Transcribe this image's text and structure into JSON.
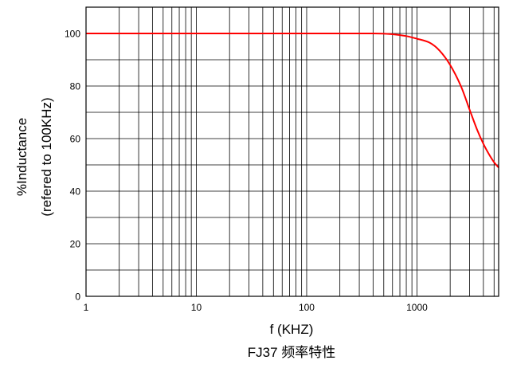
{
  "chart_data": {
    "type": "line",
    "title": "FJ37 频率特性",
    "xlabel": "f (KHZ)",
    "ylabel_lines": [
      "%Inductance",
      "(refered to 100KHz)"
    ],
    "x_scale": "log",
    "xlim": [
      1,
      5500
    ],
    "ylim": [
      0,
      110
    ],
    "x_ticks": [
      1,
      10,
      100,
      1000
    ],
    "x_tick_labels": [
      "1",
      "10",
      "100",
      "1000"
    ],
    "y_ticks": [
      0,
      20,
      40,
      60,
      80,
      100
    ],
    "y_tick_labels": [
      "0",
      "20",
      "40",
      "60",
      "80",
      "100"
    ],
    "y_gridlines": [
      0,
      10,
      20,
      30,
      40,
      50,
      60,
      70,
      80,
      90,
      100,
      110
    ],
    "grid": true,
    "legend": "none",
    "line_color": "#ff0000",
    "series": [
      {
        "x": [
          1,
          10,
          100,
          400,
          600,
          800,
          1000,
          1300,
          1600,
          2000,
          2500,
          3000,
          3500,
          4000,
          4500,
          5000,
          5500
        ],
        "y": [
          100,
          100,
          100,
          100,
          99.7,
          99,
          98,
          96.5,
          93.5,
          88,
          80,
          71,
          63.5,
          58,
          54,
          51,
          49
        ]
      }
    ]
  }
}
